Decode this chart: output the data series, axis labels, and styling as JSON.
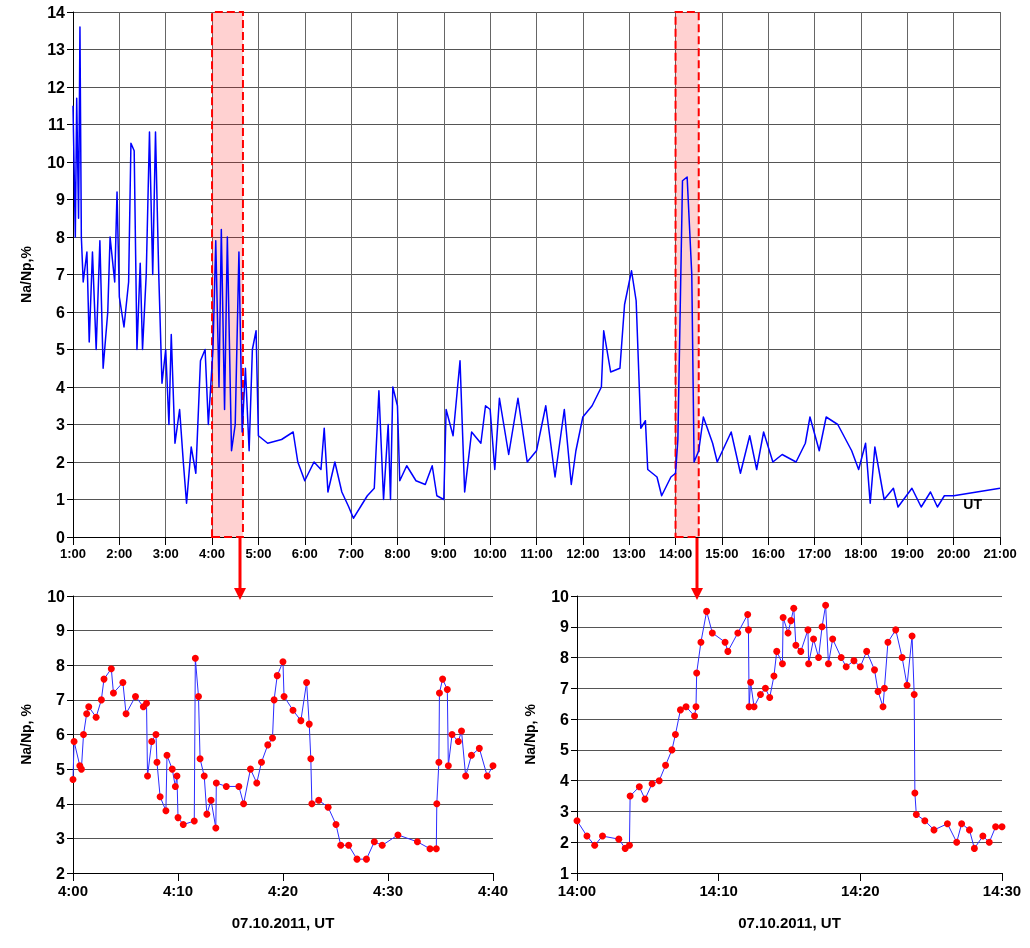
{
  "chart_data": [
    {
      "type": "line",
      "ylabel": "Na/Np,%",
      "xlabel": "UT",
      "xlim": [
        1,
        21
      ],
      "ylim": [
        0,
        14
      ],
      "yticks": [
        0,
        1,
        2,
        3,
        4,
        5,
        6,
        7,
        8,
        9,
        10,
        11,
        12,
        13,
        14
      ],
      "xticks": [
        {
          "value": 1,
          "label": "1:00"
        },
        {
          "value": 2,
          "label": "2:00"
        },
        {
          "value": 3,
          "label": "3:00"
        },
        {
          "value": 4,
          "label": "4:00"
        },
        {
          "value": 5,
          "label": "5:00"
        },
        {
          "value": 6,
          "label": "6:00"
        },
        {
          "value": 7,
          "label": "7:00"
        },
        {
          "value": 8,
          "label": "8:00"
        },
        {
          "value": 9,
          "label": "9:00"
        },
        {
          "value": 10,
          "label": "10:00"
        },
        {
          "value": 11,
          "label": "11:00"
        },
        {
          "value": 12,
          "label": "12:00"
        },
        {
          "value": 13,
          "label": "13:00"
        },
        {
          "value": 14,
          "label": "14:00"
        },
        {
          "value": 15,
          "label": "15:00"
        },
        {
          "value": 16,
          "label": "16:00"
        },
        {
          "value": 17,
          "label": "17:00"
        },
        {
          "value": 18,
          "label": "18:00"
        },
        {
          "value": 19,
          "label": "19:00"
        },
        {
          "value": 20,
          "label": "20:00"
        },
        {
          "value": 21,
          "label": "21:00"
        }
      ],
      "grid": true,
      "marker": "none",
      "bands": [
        {
          "axis": "x",
          "from": 4,
          "to": 4.6667,
          "color": "#ff0000"
        },
        {
          "axis": "x",
          "from": 14,
          "to": 14.5,
          "color": "#ff0000"
        }
      ],
      "x": [
        1.0,
        1.05,
        1.08,
        1.12,
        1.15,
        1.18,
        1.22,
        1.3,
        1.35,
        1.42,
        1.5,
        1.58,
        1.65,
        1.75,
        1.8,
        1.9,
        1.95,
        2.0,
        2.1,
        2.2,
        2.25,
        2.32,
        2.38,
        2.45,
        2.5,
        2.58,
        2.65,
        2.72,
        2.78,
        2.85,
        2.92,
        3.0,
        3.07,
        3.12,
        3.2,
        3.3,
        3.38,
        3.45,
        3.55,
        3.65,
        3.75,
        3.85,
        3.92,
        4.02,
        4.08,
        4.15,
        4.2,
        4.27,
        4.33,
        4.42,
        4.5,
        4.58,
        4.65,
        4.72,
        4.8,
        4.87,
        4.95,
        5.0,
        5.2,
        5.5,
        5.75,
        5.85,
        6.0,
        6.2,
        6.35,
        6.42,
        6.5,
        6.65,
        6.8,
        6.95,
        7.05,
        7.2,
        7.35,
        7.5,
        7.6,
        7.7,
        7.8,
        7.85,
        7.9,
        8.0,
        8.05,
        8.2,
        8.4,
        8.6,
        8.75,
        8.85,
        9.0,
        9.05,
        9.2,
        9.35,
        9.45,
        9.6,
        9.8,
        9.9,
        10.0,
        10.1,
        10.2,
        10.4,
        10.6,
        10.8,
        11.0,
        11.2,
        11.4,
        11.6,
        11.75,
        11.85,
        12.0,
        12.2,
        12.4,
        12.45,
        12.6,
        12.8,
        12.9,
        13.05,
        13.15,
        13.25,
        13.35,
        13.4,
        13.6,
        13.7,
        13.9,
        14.0,
        14.05,
        14.15,
        14.25,
        14.35,
        14.4,
        14.5,
        14.6,
        14.8,
        14.9,
        15.2,
        15.4,
        15.6,
        15.75,
        15.9,
        16.1,
        16.3,
        16.6,
        16.8,
        16.9,
        17.1,
        17.25,
        17.5,
        17.8,
        17.95,
        18.1,
        18.2,
        18.3,
        18.5,
        18.7,
        18.8,
        19.1,
        19.3,
        19.5,
        19.65,
        19.8,
        20.0,
        20.5,
        21.0
      ],
      "series": [
        {
          "color": "#0000ff",
          "values": [
            11.5,
            8.0,
            11.7,
            8.5,
            13.6,
            8.0,
            6.8,
            7.6,
            5.2,
            7.6,
            5.0,
            7.9,
            4.5,
            6.0,
            8.0,
            6.8,
            9.2,
            6.4,
            5.6,
            6.8,
            10.5,
            10.3,
            5.0,
            7.3,
            5.0,
            7.0,
            10.8,
            7.0,
            10.8,
            7.0,
            4.1,
            5.0,
            3.0,
            5.4,
            2.5,
            3.4,
            2.0,
            0.9,
            2.4,
            1.7,
            4.7,
            5.0,
            3.0,
            5.0,
            7.9,
            4.0,
            8.2,
            3.4,
            8.0,
            2.3,
            3.0,
            7.6,
            2.8,
            4.5,
            2.3,
            5.0,
            5.5,
            2.7,
            2.5,
            2.6,
            2.8,
            2.0,
            1.5,
            2.0,
            1.8,
            2.9,
            1.2,
            2.0,
            1.2,
            0.8,
            0.5,
            0.8,
            1.1,
            1.3,
            3.9,
            1.0,
            3.0,
            1.0,
            4.0,
            3.5,
            1.5,
            1.9,
            1.5,
            1.4,
            1.9,
            1.1,
            1.0,
            3.4,
            2.7,
            4.7,
            1.2,
            2.8,
            2.5,
            3.5,
            3.4,
            1.8,
            3.7,
            2.2,
            3.7,
            2.0,
            2.3,
            3.5,
            1.6,
            3.4,
            1.4,
            2.3,
            3.2,
            3.5,
            4.0,
            5.5,
            4.4,
            4.5,
            6.2,
            7.1,
            6.3,
            2.9,
            3.1,
            1.8,
            1.6,
            1.1,
            1.6,
            1.7,
            2.6,
            9.5,
            9.6,
            7.0,
            2.0,
            2.3,
            3.2,
            2.5,
            2.0,
            2.8,
            1.7,
            2.7,
            1.8,
            2.8,
            2.0,
            2.2,
            2.0,
            2.5,
            3.2,
            2.3,
            3.2,
            3.0,
            2.3,
            1.8,
            2.5,
            0.9,
            2.4,
            1.0,
            1.3,
            0.8,
            1.3,
            0.8,
            1.2,
            0.8,
            1.1,
            1.1,
            1.2,
            1.3
          ]
        }
      ]
    },
    {
      "type": "line",
      "ylabel": "Na/Np, %",
      "xlabel": "07.10.2011, UT",
      "xlim": [
        4,
        4.6667
      ],
      "ylim": [
        2,
        10
      ],
      "yticks": [
        2,
        3,
        4,
        5,
        6,
        7,
        8,
        9,
        10
      ],
      "xticks": [
        {
          "value": 4,
          "label": "4:00"
        },
        {
          "value": 4.1667,
          "label": "4:10"
        },
        {
          "value": 4.3333,
          "label": "4:20"
        },
        {
          "value": 4.5,
          "label": "4:30"
        },
        {
          "value": 4.6667,
          "label": "4:40"
        }
      ],
      "grid": "y",
      "marker": "circle",
      "x": [
        4,
        4.0017,
        4.0108,
        4.0133,
        4.0167,
        4.0217,
        4.025,
        4.0367,
        4.045,
        4.0492,
        4.0608,
        4.0642,
        4.0792,
        4.0842,
        4.0992,
        4.1117,
        4.1167,
        4.1183,
        4.125,
        4.1317,
        4.1333,
        4.1383,
        4.1475,
        4.1492,
        4.1575,
        4.1625,
        4.165,
        4.1667,
        4.175,
        4.1925,
        4.1942,
        4.1992,
        4.2017,
        4.2083,
        4.2125,
        4.2192,
        4.2267,
        4.2275,
        4.2433,
        4.2633,
        4.2708,
        4.2817,
        4.2917,
        4.2992,
        4.3092,
        4.3167,
        4.3192,
        4.3242,
        4.3333,
        4.335,
        4.3492,
        4.3617,
        4.3708,
        4.375,
        4.3775,
        4.3792,
        4.39,
        4.405,
        4.4175,
        4.425,
        4.4375,
        4.4508,
        4.4658,
        4.4783,
        4.4908,
        4.5158,
        4.5467,
        4.5667,
        4.5767,
        4.5775,
        4.5808,
        4.5817,
        4.5867,
        4.5942,
        4.5958,
        4.6017,
        4.6117,
        4.6167,
        4.6233,
        4.6325,
        4.645,
        4.6575,
        4.6667
      ],
      "series": [
        {
          "color": "#ff0000",
          "values": [
            4.7,
            5.8,
            5.1,
            5.0,
            6.0,
            6.6,
            6.8,
            6.5,
            7.0,
            7.6,
            7.9,
            7.2,
            7.5,
            6.6,
            7.1,
            6.8,
            6.9,
            4.8,
            5.8,
            6.0,
            5.2,
            4.2,
            3.8,
            5.4,
            5.0,
            4.5,
            4.8,
            3.6,
            3.4,
            3.5,
            8.2,
            7.1,
            5.3,
            4.8,
            3.7,
            4.1,
            3.3,
            4.6,
            4.5,
            4.5,
            4.0,
            5.0,
            4.6,
            5.2,
            5.7,
            5.9,
            7.0,
            7.7,
            8.1,
            7.1,
            6.7,
            6.4,
            7.5,
            6.3,
            5.3,
            4.0,
            4.1,
            3.9,
            3.4,
            2.8,
            2.8,
            2.4,
            2.4,
            2.9,
            2.8,
            3.1,
            2.9,
            2.7,
            2.7,
            4.0,
            5.2,
            7.2,
            7.6,
            7.3,
            5.1,
            6.0,
            5.8,
            6.1,
            4.8,
            5.4,
            5.6,
            4.8,
            5.1
          ]
        }
      ]
    },
    {
      "type": "line",
      "ylabel": "Na/Np, %",
      "xlabel": "07.10.2011, UT",
      "xlim": [
        14,
        14.5
      ],
      "ylim": [
        1,
        10
      ],
      "yticks": [
        1,
        2,
        3,
        4,
        5,
        6,
        7,
        8,
        9,
        10
      ],
      "xticks": [
        {
          "value": 14,
          "label": "14:00"
        },
        {
          "value": 14.1667,
          "label": "14:10"
        },
        {
          "value": 14.3333,
          "label": "14:20"
        },
        {
          "value": 14.5,
          "label": "14:30"
        }
      ],
      "grid": "y",
      "marker": "circle",
      "x": [
        14,
        14.0117,
        14.0208,
        14.03,
        14.0492,
        14.0567,
        14.0617,
        14.0625,
        14.0733,
        14.08,
        14.0883,
        14.0967,
        14.1042,
        14.1117,
        14.1158,
        14.1217,
        14.1283,
        14.1383,
        14.14,
        14.1408,
        14.1458,
        14.1525,
        14.1592,
        14.1742,
        14.1775,
        14.1892,
        14.2008,
        14.2017,
        14.2025,
        14.2042,
        14.2083,
        14.2158,
        14.2217,
        14.2267,
        14.2317,
        14.235,
        14.2417,
        14.2425,
        14.2483,
        14.2517,
        14.255,
        14.2575,
        14.2633,
        14.2717,
        14.2725,
        14.2783,
        14.2842,
        14.2883,
        14.2925,
        14.2958,
        14.3008,
        14.3108,
        14.3167,
        14.3258,
        14.3333,
        14.3408,
        14.35,
        14.3542,
        14.36,
        14.3617,
        14.3658,
        14.375,
        14.3825,
        14.3883,
        14.3942,
        14.3967,
        14.3975,
        14.3992,
        14.4092,
        14.42,
        14.4358,
        14.4467,
        14.4525,
        14.4617,
        14.4675,
        14.4775,
        14.485,
        14.4925,
        14.5
      ],
      "series": [
        {
          "color": "#ff0000",
          "values": [
            2.7,
            2.2,
            1.9,
            2.2,
            2.1,
            1.8,
            1.9,
            3.5,
            3.8,
            3.4,
            3.9,
            4.0,
            4.5,
            5.0,
            5.5,
            6.3,
            6.4,
            6.1,
            6.4,
            7.5,
            8.5,
            9.5,
            8.8,
            8.5,
            8.2,
            8.8,
            9.4,
            8.9,
            6.4,
            7.2,
            6.4,
            6.8,
            7.0,
            6.7,
            7.4,
            8.2,
            7.8,
            9.3,
            8.8,
            9.2,
            9.6,
            8.4,
            8.2,
            8.9,
            7.8,
            8.6,
            8.0,
            9.0,
            9.7,
            7.8,
            8.6,
            8.0,
            7.7,
            7.9,
            7.7,
            8.2,
            7.6,
            6.9,
            6.4,
            7.0,
            8.5,
            8.9,
            8.0,
            7.1,
            8.7,
            6.8,
            3.6,
            2.9,
            2.7,
            2.4,
            2.6,
            2.0,
            2.6,
            2.4,
            1.8,
            2.2,
            2.0,
            2.5,
            2.5
          ]
        }
      ]
    }
  ]
}
